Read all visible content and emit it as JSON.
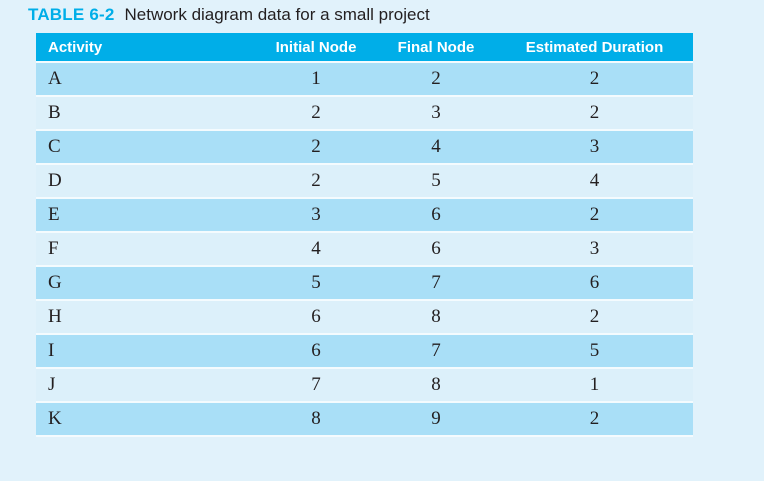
{
  "title": {
    "label": "TABLE 6-2",
    "caption": "Network diagram data for a small project"
  },
  "table": {
    "columns": [
      "Activity",
      "Initial Node",
      "Final Node",
      "Estimated Duration"
    ],
    "rows": [
      [
        "A",
        "1",
        "2",
        "2"
      ],
      [
        "B",
        "2",
        "3",
        "2"
      ],
      [
        "C",
        "2",
        "4",
        "3"
      ],
      [
        "D",
        "2",
        "5",
        "4"
      ],
      [
        "E",
        "3",
        "6",
        "2"
      ],
      [
        "F",
        "4",
        "6",
        "3"
      ],
      [
        "G",
        "5",
        "7",
        "6"
      ],
      [
        "H",
        "6",
        "8",
        "2"
      ],
      [
        "I",
        "6",
        "7",
        "5"
      ],
      [
        "J",
        "7",
        "8",
        "1"
      ],
      [
        "K",
        "8",
        "9",
        "2"
      ]
    ]
  },
  "colors": {
    "accent_cyan": "#00AEE8",
    "header_text": "#FFFFFF",
    "row_stripe_dark": "#A9DFF7",
    "row_stripe_light": "#DCF0FA",
    "panel_background": "#E1F2FB",
    "body_text": "#231F20",
    "row_divider": "#F4FBFE"
  }
}
